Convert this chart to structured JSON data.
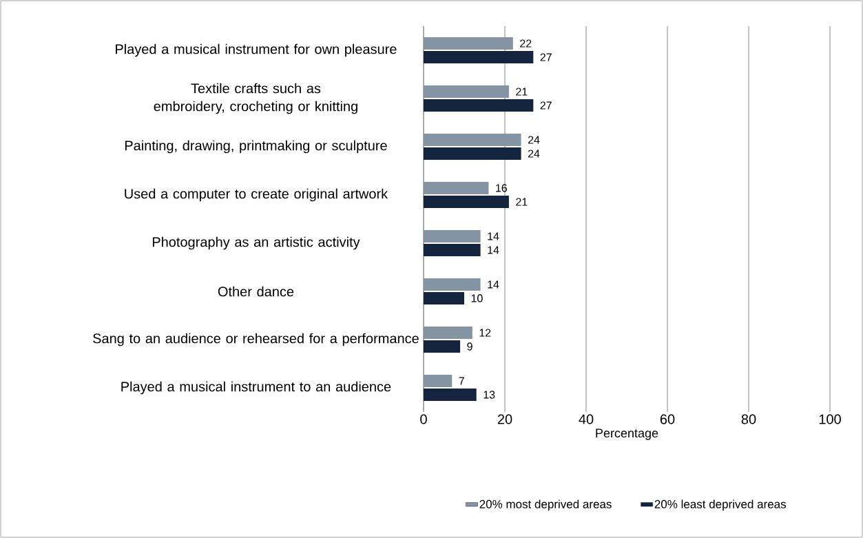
{
  "chart_data": {
    "type": "bar",
    "orientation": "horizontal",
    "categories": [
      "Played a musical instrument for own pleasure",
      "Textile crafts such as embroidery, crocheting or knitting",
      "Painting, drawing, printmaking or sculpture",
      "Used a computer to create original artwork",
      "Photography as an artistic activity",
      "Other dance",
      "Sang to an audience or rehearsed for a performance",
      "Played a musical instrument to an audience"
    ],
    "series": [
      {
        "name": "20% most deprived areas",
        "color": "#8494a2",
        "values": [
          22,
          21,
          24,
          16,
          14,
          14,
          12,
          7
        ]
      },
      {
        "name": "20% least deprived areas",
        "color": "#14243f",
        "values": [
          27,
          27,
          24,
          21,
          14,
          10,
          9,
          13
        ]
      }
    ],
    "xlabel": "Percentage",
    "xlim": [
      0,
      100
    ],
    "xticks": [
      0,
      20,
      40,
      60,
      80,
      100
    ],
    "grid": "x",
    "legend": "bottom",
    "data_labels": true
  }
}
